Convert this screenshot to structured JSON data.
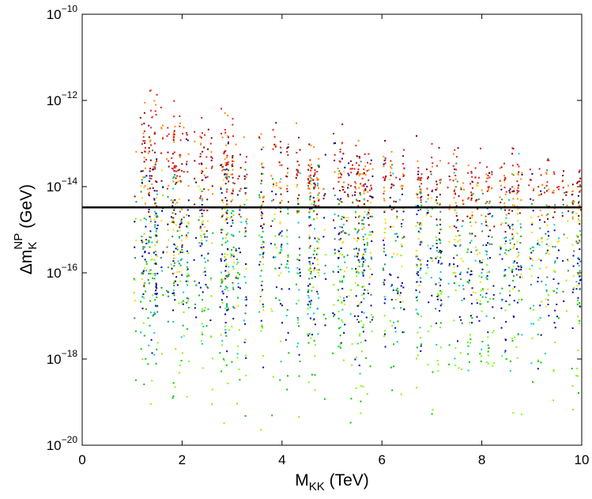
{
  "chart_data": {
    "type": "scatter",
    "title": "",
    "xlabel": {
      "main": "M",
      "sub": "KK",
      "rest": " (TeV)"
    },
    "ylabel": {
      "delta": "Δm",
      "sub": "K",
      "sup": "NP",
      "rest": " (GeV)"
    },
    "xlim": [
      0,
      10
    ],
    "ylim": [
      1e-20,
      1e-10
    ],
    "yscale": "log",
    "grid": false,
    "legend": "none",
    "x_ticks": [
      "0",
      "2",
      "4",
      "6",
      "8",
      "10"
    ],
    "y_ticks": [
      {
        "base": "10",
        "exp": "−10"
      },
      {
        "base": "10",
        "exp": "−12"
      },
      {
        "base": "10",
        "exp": "−14"
      },
      {
        "base": "10",
        "exp": "−16"
      },
      {
        "base": "10",
        "exp": "−18"
      },
      {
        "base": "10",
        "exp": "−20"
      }
    ],
    "y_tick_values": [
      1e-10,
      1e-12,
      1e-14,
      1e-16,
      1e-18,
      1e-20
    ],
    "x_tick_values": [
      0,
      2,
      4,
      6,
      8,
      10
    ],
    "reference_line": {
      "y": 3.3e-15,
      "color": "#000000"
    },
    "x_range_of_points": [
      1,
      10
    ],
    "upper_envelope": [
      {
        "x": 1.0,
        "y": 3e-13
      },
      {
        "x": 1.25,
        "y": 1e-11
      },
      {
        "x": 2.0,
        "y": 2.5e-12
      },
      {
        "x": 3.0,
        "y": 1e-12
      },
      {
        "x": 4.0,
        "y": 6e-13
      },
      {
        "x": 5.0,
        "y": 5e-13
      },
      {
        "x": 6.0,
        "y": 3e-13
      },
      {
        "x": 7.0,
        "y": 2.5e-13
      },
      {
        "x": 8.0,
        "y": 2e-13
      },
      {
        "x": 9.0,
        "y": 1.5e-13
      },
      {
        "x": 10.0,
        "y": 1e-13
      }
    ],
    "series": [
      {
        "color": "#e41a1c",
        "log10_range": [
          -14.5,
          -11.0
        ]
      },
      {
        "color": "#ff8c00",
        "log10_range": [
          -15.0,
          -11.5
        ]
      },
      {
        "color": "#8b0000",
        "log10_range": [
          -15.5,
          -12.0
        ]
      },
      {
        "color": "#0000cd",
        "log10_range": [
          -18.5,
          -12.5
        ]
      },
      {
        "color": "#00008b",
        "log10_range": [
          -18.0,
          -13.0
        ]
      },
      {
        "color": "#00ced1",
        "log10_range": [
          -18.5,
          -13.0
        ]
      },
      {
        "color": "#2e8b57",
        "log10_range": [
          -17.5,
          -13.0
        ]
      },
      {
        "color": "#00c800",
        "log10_range": [
          -19.5,
          -13.0
        ]
      },
      {
        "color": "#7cfc00",
        "log10_range": [
          -19.8,
          -14.0
        ]
      },
      {
        "color": "#ffd700",
        "log10_range": [
          -17.0,
          -13.5
        ]
      }
    ]
  }
}
